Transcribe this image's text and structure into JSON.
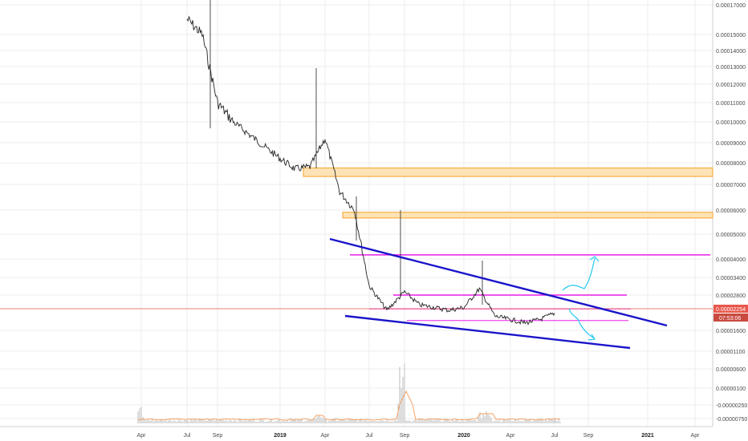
{
  "chart_data": {
    "type": "line",
    "title": "",
    "y_scale": "log",
    "y_ticks": [
      "0.00017000",
      "0.00015000",
      "0.00014000",
      "0.00013000",
      "0.00012000",
      "0.00011000",
      "0.00010000",
      "0.00009000",
      "0.00008000",
      "0.00007000",
      "0.00006000",
      "0.00005000",
      "0.00004000",
      "0.00003400",
      "0.00002800",
      "0.00001600",
      "0.00001100",
      "0.00000600",
      "0.00000100",
      "-0.00000250",
      "-0.00000750"
    ],
    "x_ticks": [
      {
        "label": "Apr",
        "bold": false
      },
      {
        "label": "Jul",
        "bold": false
      },
      {
        "label": "Sep",
        "bold": false
      },
      {
        "label": "2019",
        "bold": true
      },
      {
        "label": "Apr",
        "bold": false
      },
      {
        "label": "Jul",
        "bold": false
      },
      {
        "label": "Sep",
        "bold": false
      },
      {
        "label": "2020",
        "bold": true
      },
      {
        "label": "Apr",
        "bold": false
      },
      {
        "label": "Jul",
        "bold": false
      },
      {
        "label": "Sep",
        "bold": false
      },
      {
        "label": "2021",
        "bold": true
      },
      {
        "label": "Apr",
        "bold": false
      }
    ],
    "price_series": {
      "name": "",
      "color": "#222222",
      "x": [
        "2018-07",
        "2018-08",
        "2018-09",
        "2018-10",
        "2018-11",
        "2018-12",
        "2019-01",
        "2019-02",
        "2019-03",
        "2019-04",
        "2019-05",
        "2019-06",
        "2019-07",
        "2019-08",
        "2019-09",
        "2019-10",
        "2019-11",
        "2019-12",
        "2020-01",
        "2020-02",
        "2020-03",
        "2020-04",
        "2020-05",
        "2020-06",
        "2020-07"
      ],
      "y": [
        0.00016,
        0.00015,
        0.00011,
        0.0001,
        9.4e-05,
        8.8e-05,
        8.2e-05,
        7.7e-05,
        7.8e-05,
        9.2e-05,
        6.7e-05,
        6e-05,
        3.1e-05,
        2.2e-05,
        2.9e-05,
        2.4e-05,
        2.3e-05,
        2.2e-05,
        2.3e-05,
        3e-05,
        2e-05,
        1.9e-05,
        1.8e-05,
        1.9e-05,
        2.1e-05
      ]
    },
    "volume_series": {
      "name": "",
      "bar_color": "#bdbdbd",
      "ma_color": "#f39c5a"
    },
    "current_price": {
      "value": "0.00002254",
      "countdown": "07:53:06",
      "color": "#e8574a"
    },
    "drawings": {
      "resistance_zones": [
        {
          "from": 7.35e-05,
          "to": 7.75e-05,
          "color": "#f7a32b"
        },
        {
          "from": 5.65e-05,
          "to": 5.9e-05,
          "color": "#f7a32b"
        }
      ],
      "horizontal_levels": [
        {
          "value": 4.15e-05,
          "color": "#e81ee8"
        },
        {
          "value": 2.8e-05,
          "color": "#e81ee8"
        },
        {
          "value": 2.25e-05,
          "color": "#e81ee8"
        },
        {
          "value": 1.87e-05,
          "color": "#e81ee8"
        }
      ],
      "trendlines": [
        {
          "role": "upper",
          "color": "#1a14c9"
        },
        {
          "role": "lower",
          "color": "#1a14c9"
        }
      ],
      "projection_arrows": [
        {
          "direction": "up",
          "color": "#22c9f0"
        },
        {
          "direction": "down",
          "color": "#22c9f0"
        }
      ]
    },
    "grid": true
  }
}
